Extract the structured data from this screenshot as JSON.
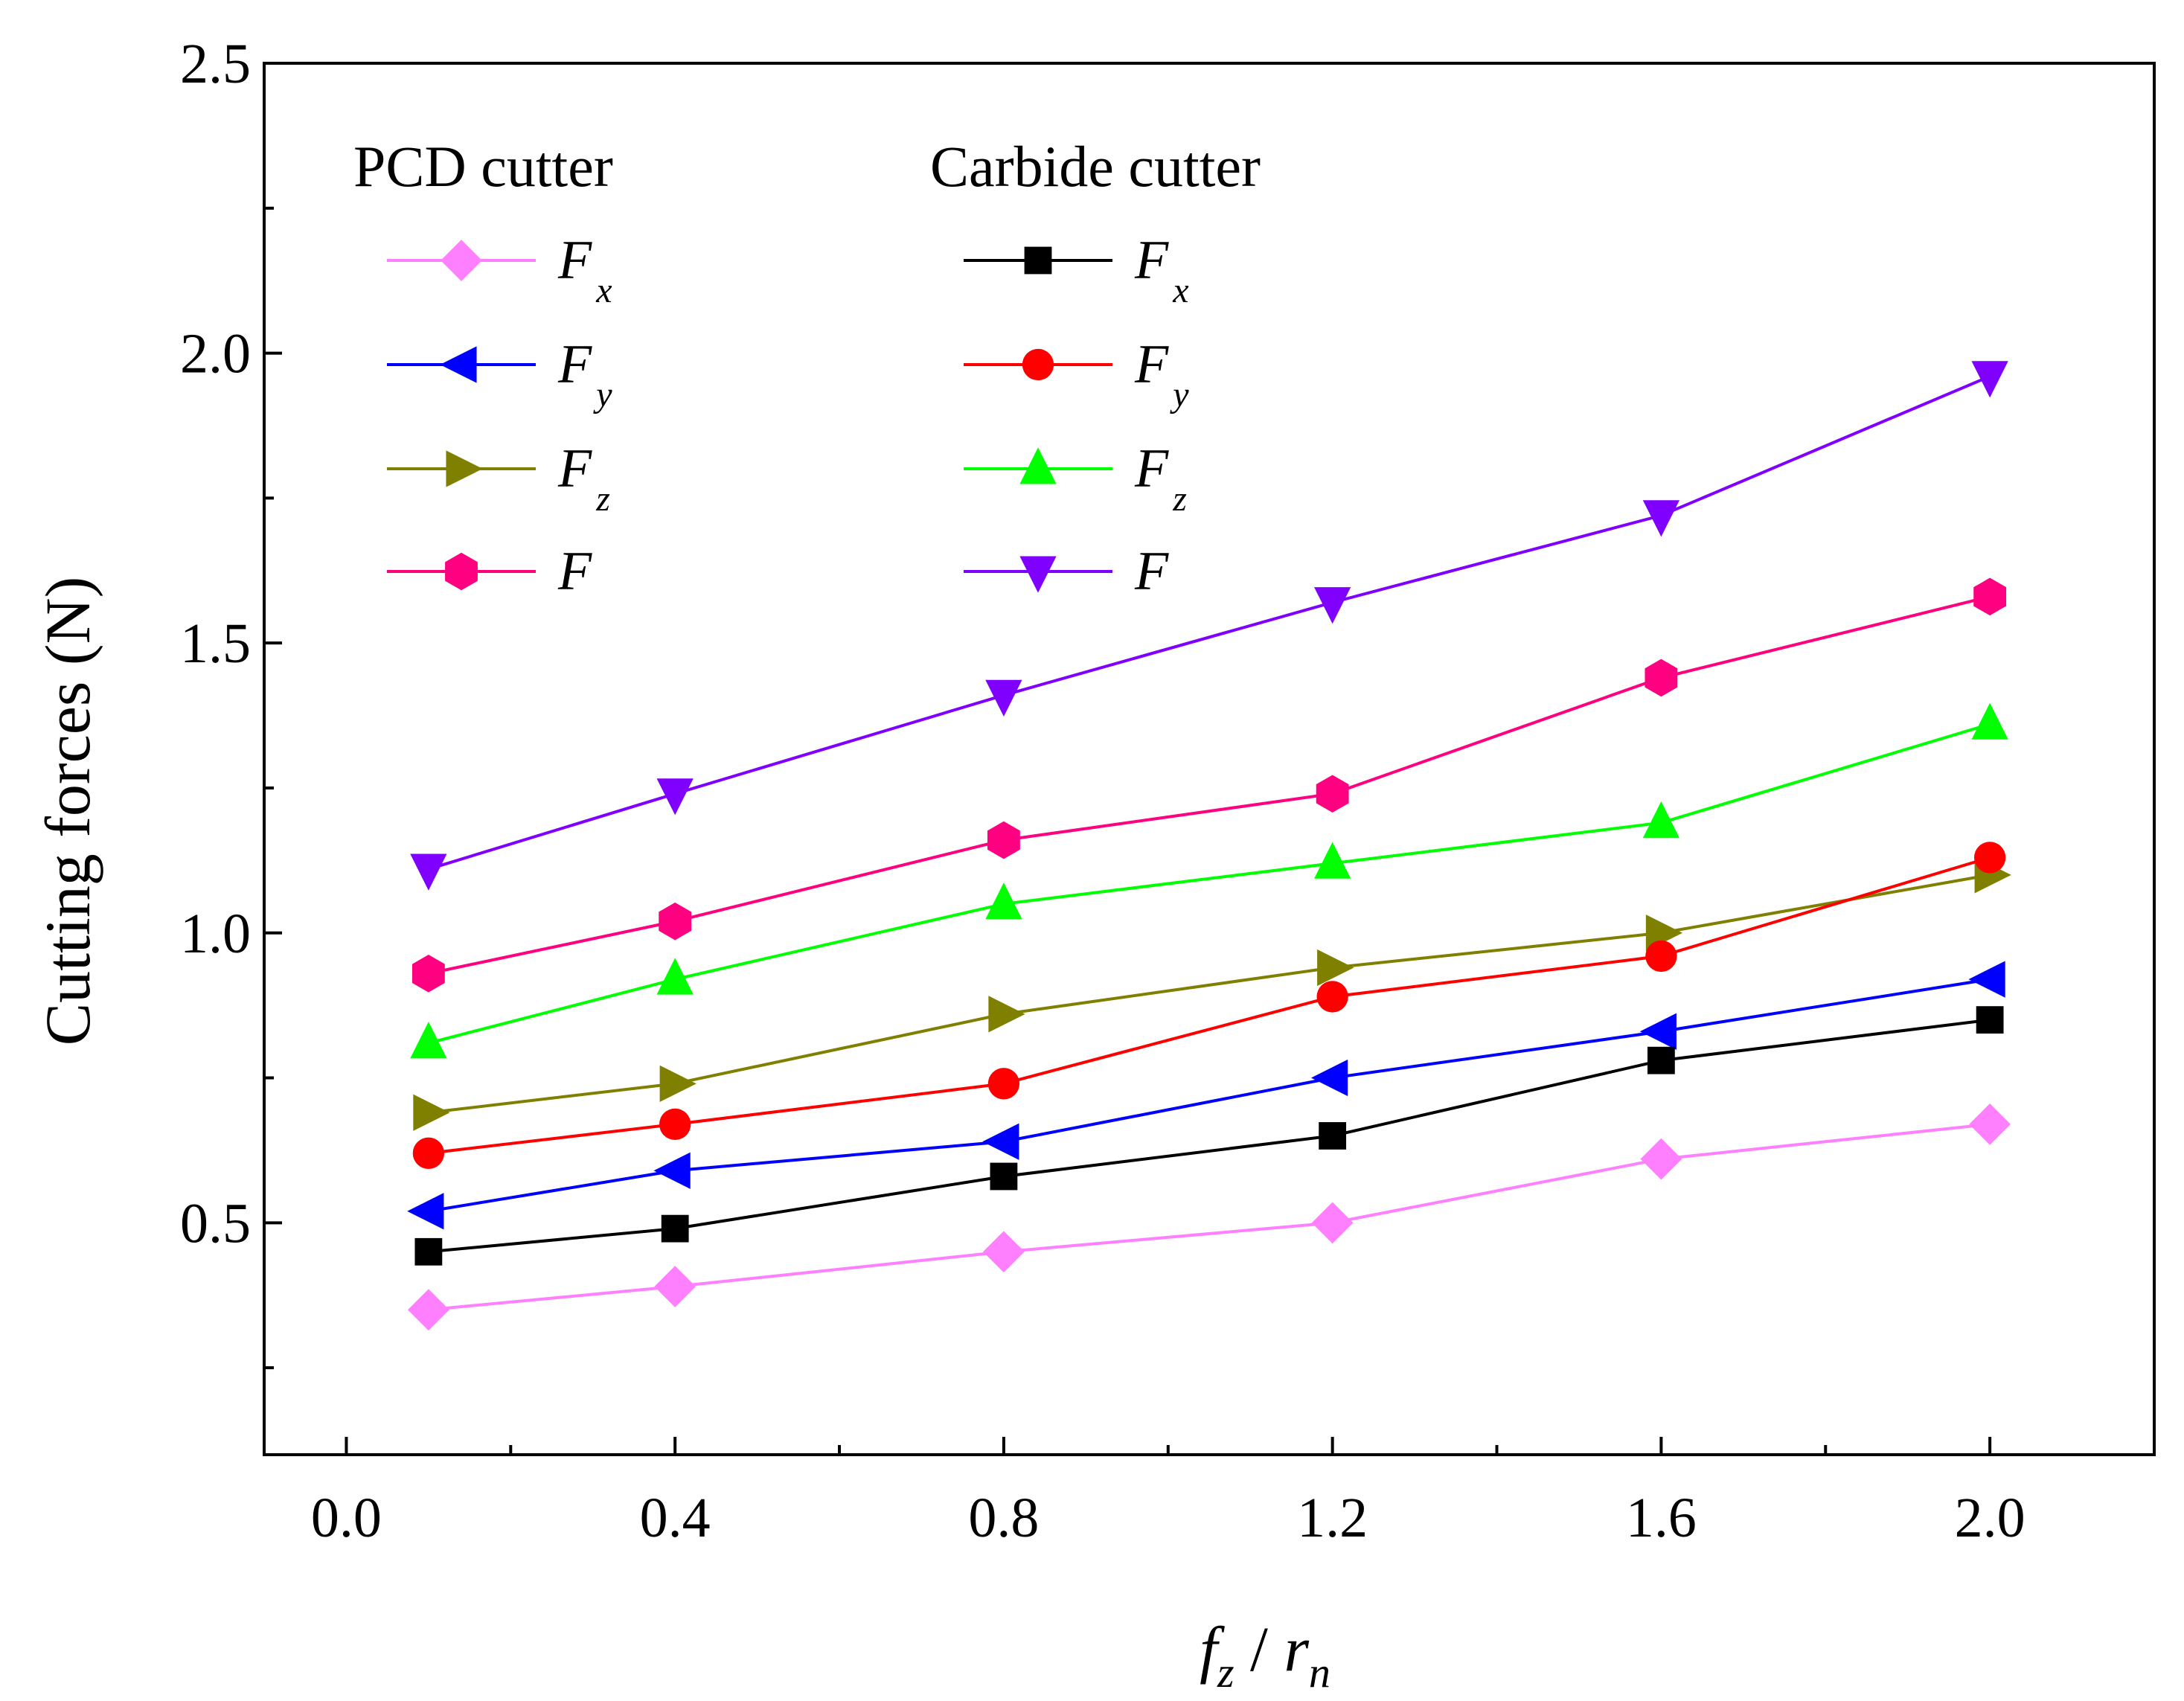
{
  "chart_data": {
    "type": "line",
    "xlabel": {
      "main": "f",
      "sub1": "z",
      "sep": " / ",
      "main2": "r",
      "sub2": "n"
    },
    "ylabel": "Cutting forces (N)",
    "xlim": [
      -0.1,
      2.2
    ],
    "ylim": [
      0.1,
      2.5
    ],
    "x_ticks": [
      0.0,
      0.4,
      0.8,
      1.2,
      1.6,
      2.0
    ],
    "x_tick_labels": [
      "0.0",
      "0.4",
      "0.8",
      "1.2",
      "1.6",
      "2.0"
    ],
    "y_ticks": [
      0.5,
      1.0,
      1.5,
      2.0,
      2.5
    ],
    "y_tick_labels": [
      "0.5",
      "1.0",
      "1.5",
      "2.0",
      "2.5"
    ],
    "x": [
      0.1,
      0.4,
      0.8,
      1.2,
      1.6,
      2.0
    ],
    "legend_groups": [
      {
        "title": "PCD cutter"
      },
      {
        "title": "Carbide cutter"
      }
    ],
    "series": [
      {
        "name": "F_x",
        "label_main": "F",
        "label_sub": "x",
        "group": 0,
        "color": "#ff80ff",
        "marker": "diamond",
        "values": [
          0.35,
          0.39,
          0.45,
          0.5,
          0.61,
          0.67
        ]
      },
      {
        "name": "F_y",
        "label_main": "F",
        "label_sub": "y",
        "group": 0,
        "color": "#0000ff",
        "marker": "triangle-left",
        "values": [
          0.52,
          0.59,
          0.64,
          0.75,
          0.83,
          0.92
        ]
      },
      {
        "name": "F_z",
        "label_main": "F",
        "label_sub": "z",
        "group": 0,
        "color": "#808000",
        "marker": "triangle-right",
        "values": [
          0.69,
          0.74,
          0.86,
          0.94,
          1.0,
          1.1
        ]
      },
      {
        "name": "F",
        "label_main": "F",
        "label_sub": "",
        "group": 0,
        "color": "#ff0080",
        "marker": "hexagon",
        "values": [
          0.93,
          1.02,
          1.16,
          1.24,
          1.44,
          1.58
        ]
      },
      {
        "name": "F_x",
        "label_main": "F",
        "label_sub": "x",
        "group": 1,
        "color": "#000000",
        "marker": "square",
        "values": [
          0.45,
          0.49,
          0.58,
          0.65,
          0.78,
          0.85
        ]
      },
      {
        "name": "F_y",
        "label_main": "F",
        "label_sub": "y",
        "group": 1,
        "color": "#ff0000",
        "marker": "circle",
        "values": [
          0.62,
          0.67,
          0.74,
          0.89,
          0.96,
          1.13
        ]
      },
      {
        "name": "F_z",
        "label_main": "F",
        "label_sub": "z",
        "group": 1,
        "color": "#00ff00",
        "marker": "triangle-up",
        "values": [
          0.81,
          0.92,
          1.05,
          1.12,
          1.19,
          1.36
        ]
      },
      {
        "name": "F",
        "label_main": "F",
        "label_sub": "",
        "group": 1,
        "color": "#8000ff",
        "marker": "triangle-down",
        "values": [
          1.11,
          1.24,
          1.41,
          1.57,
          1.72,
          1.96
        ]
      }
    ]
  }
}
